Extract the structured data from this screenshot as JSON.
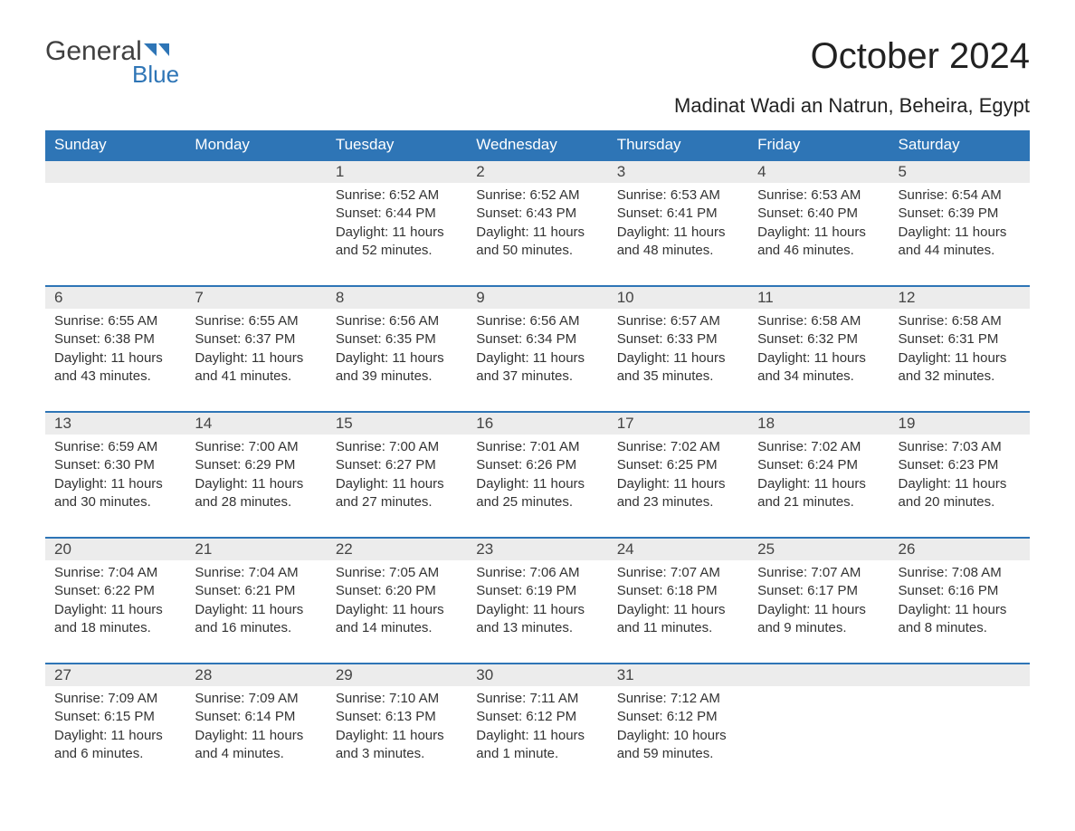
{
  "brand": {
    "general": "General",
    "blue": "Blue"
  },
  "title": "October 2024",
  "location": "Madinat Wadi an Natrun, Beheira, Egypt",
  "colors": {
    "header_bg": "#2e75b6",
    "header_text": "#ffffff",
    "daynum_bg": "#ececec",
    "daynum_border": "#2e75b6",
    "text": "#333333",
    "logo_general": "#404040",
    "logo_blue": "#2e75b6",
    "background": "#ffffff"
  },
  "fonts": {
    "family": "Arial",
    "title_size_pt": 30,
    "location_size_pt": 17,
    "header_size_pt": 13,
    "daynum_size_pt": 13,
    "body_size_pt": 11
  },
  "weekdays": [
    "Sunday",
    "Monday",
    "Tuesday",
    "Wednesday",
    "Thursday",
    "Friday",
    "Saturday"
  ],
  "weeks": [
    [
      null,
      null,
      {
        "n": "1",
        "sr": "Sunrise: 6:52 AM",
        "ss": "Sunset: 6:44 PM",
        "dl": "Daylight: 11 hours and 52 minutes."
      },
      {
        "n": "2",
        "sr": "Sunrise: 6:52 AM",
        "ss": "Sunset: 6:43 PM",
        "dl": "Daylight: 11 hours and 50 minutes."
      },
      {
        "n": "3",
        "sr": "Sunrise: 6:53 AM",
        "ss": "Sunset: 6:41 PM",
        "dl": "Daylight: 11 hours and 48 minutes."
      },
      {
        "n": "4",
        "sr": "Sunrise: 6:53 AM",
        "ss": "Sunset: 6:40 PM",
        "dl": "Daylight: 11 hours and 46 minutes."
      },
      {
        "n": "5",
        "sr": "Sunrise: 6:54 AM",
        "ss": "Sunset: 6:39 PM",
        "dl": "Daylight: 11 hours and 44 minutes."
      }
    ],
    [
      {
        "n": "6",
        "sr": "Sunrise: 6:55 AM",
        "ss": "Sunset: 6:38 PM",
        "dl": "Daylight: 11 hours and 43 minutes."
      },
      {
        "n": "7",
        "sr": "Sunrise: 6:55 AM",
        "ss": "Sunset: 6:37 PM",
        "dl": "Daylight: 11 hours and 41 minutes."
      },
      {
        "n": "8",
        "sr": "Sunrise: 6:56 AM",
        "ss": "Sunset: 6:35 PM",
        "dl": "Daylight: 11 hours and 39 minutes."
      },
      {
        "n": "9",
        "sr": "Sunrise: 6:56 AM",
        "ss": "Sunset: 6:34 PM",
        "dl": "Daylight: 11 hours and 37 minutes."
      },
      {
        "n": "10",
        "sr": "Sunrise: 6:57 AM",
        "ss": "Sunset: 6:33 PM",
        "dl": "Daylight: 11 hours and 35 minutes."
      },
      {
        "n": "11",
        "sr": "Sunrise: 6:58 AM",
        "ss": "Sunset: 6:32 PM",
        "dl": "Daylight: 11 hours and 34 minutes."
      },
      {
        "n": "12",
        "sr": "Sunrise: 6:58 AM",
        "ss": "Sunset: 6:31 PM",
        "dl": "Daylight: 11 hours and 32 minutes."
      }
    ],
    [
      {
        "n": "13",
        "sr": "Sunrise: 6:59 AM",
        "ss": "Sunset: 6:30 PM",
        "dl": "Daylight: 11 hours and 30 minutes."
      },
      {
        "n": "14",
        "sr": "Sunrise: 7:00 AM",
        "ss": "Sunset: 6:29 PM",
        "dl": "Daylight: 11 hours and 28 minutes."
      },
      {
        "n": "15",
        "sr": "Sunrise: 7:00 AM",
        "ss": "Sunset: 6:27 PM",
        "dl": "Daylight: 11 hours and 27 minutes."
      },
      {
        "n": "16",
        "sr": "Sunrise: 7:01 AM",
        "ss": "Sunset: 6:26 PM",
        "dl": "Daylight: 11 hours and 25 minutes."
      },
      {
        "n": "17",
        "sr": "Sunrise: 7:02 AM",
        "ss": "Sunset: 6:25 PM",
        "dl": "Daylight: 11 hours and 23 minutes."
      },
      {
        "n": "18",
        "sr": "Sunrise: 7:02 AM",
        "ss": "Sunset: 6:24 PM",
        "dl": "Daylight: 11 hours and 21 minutes."
      },
      {
        "n": "19",
        "sr": "Sunrise: 7:03 AM",
        "ss": "Sunset: 6:23 PM",
        "dl": "Daylight: 11 hours and 20 minutes."
      }
    ],
    [
      {
        "n": "20",
        "sr": "Sunrise: 7:04 AM",
        "ss": "Sunset: 6:22 PM",
        "dl": "Daylight: 11 hours and 18 minutes."
      },
      {
        "n": "21",
        "sr": "Sunrise: 7:04 AM",
        "ss": "Sunset: 6:21 PM",
        "dl": "Daylight: 11 hours and 16 minutes."
      },
      {
        "n": "22",
        "sr": "Sunrise: 7:05 AM",
        "ss": "Sunset: 6:20 PM",
        "dl": "Daylight: 11 hours and 14 minutes."
      },
      {
        "n": "23",
        "sr": "Sunrise: 7:06 AM",
        "ss": "Sunset: 6:19 PM",
        "dl": "Daylight: 11 hours and 13 minutes."
      },
      {
        "n": "24",
        "sr": "Sunrise: 7:07 AM",
        "ss": "Sunset: 6:18 PM",
        "dl": "Daylight: 11 hours and 11 minutes."
      },
      {
        "n": "25",
        "sr": "Sunrise: 7:07 AM",
        "ss": "Sunset: 6:17 PM",
        "dl": "Daylight: 11 hours and 9 minutes."
      },
      {
        "n": "26",
        "sr": "Sunrise: 7:08 AM",
        "ss": "Sunset: 6:16 PM",
        "dl": "Daylight: 11 hours and 8 minutes."
      }
    ],
    [
      {
        "n": "27",
        "sr": "Sunrise: 7:09 AM",
        "ss": "Sunset: 6:15 PM",
        "dl": "Daylight: 11 hours and 6 minutes."
      },
      {
        "n": "28",
        "sr": "Sunrise: 7:09 AM",
        "ss": "Sunset: 6:14 PM",
        "dl": "Daylight: 11 hours and 4 minutes."
      },
      {
        "n": "29",
        "sr": "Sunrise: 7:10 AM",
        "ss": "Sunset: 6:13 PM",
        "dl": "Daylight: 11 hours and 3 minutes."
      },
      {
        "n": "30",
        "sr": "Sunrise: 7:11 AM",
        "ss": "Sunset: 6:12 PM",
        "dl": "Daylight: 11 hours and 1 minute."
      },
      {
        "n": "31",
        "sr": "Sunrise: 7:12 AM",
        "ss": "Sunset: 6:12 PM",
        "dl": "Daylight: 10 hours and 59 minutes."
      },
      null,
      null
    ]
  ]
}
